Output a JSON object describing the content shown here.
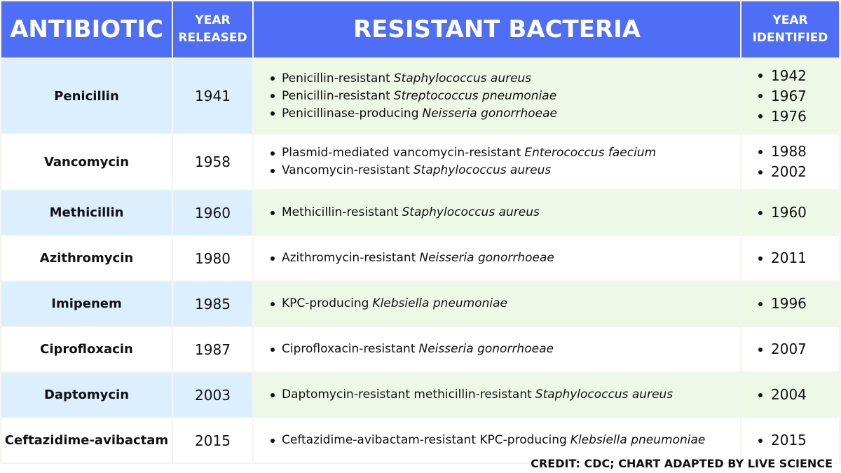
{
  "header": {
    "antibiotic": "ANTIBIOTIC",
    "year_released": "YEAR RELEASED",
    "resistant_bacteria": "RESISTANT BACTERIA",
    "year_identified": "YEAR IDENTIFIED"
  },
  "rows": [
    {
      "antibiotic": "Penicillin",
      "year_released": "1941",
      "bacteria": [
        {
          "text": "Penicillin-resistant",
          "italic": "Staphylococcus aureus"
        },
        {
          "text": "Penicillin-resistant",
          "italic": "Streptococcus pneumoniae"
        },
        {
          "text": "Penicillinase-producing",
          "italic": "Neisseria gonorrhoeae"
        }
      ],
      "years_identified": [
        "1942",
        "1967",
        "1976"
      ]
    },
    {
      "antibiotic": "Vancomycin",
      "year_released": "1958",
      "bacteria": [
        {
          "text": "Plasmid-mediated vancomycin-resistant",
          "italic": "Enterococcus faecium"
        },
        {
          "text": "Vancomycin-resistant",
          "italic": "Staphylococcus aureus"
        }
      ],
      "years_identified": [
        "1988",
        "2002"
      ]
    },
    {
      "antibiotic": "Methicillin",
      "year_released": "1960",
      "bacteria": [
        {
          "text": "Methicillin-resistant",
          "italic": "Staphylococcus aureus"
        }
      ],
      "years_identified": [
        "1960"
      ]
    },
    {
      "antibiotic": "Azithromycin",
      "year_released": "1980",
      "bacteria": [
        {
          "text": "Azithromycin-resistant",
          "italic": "Neisseria gonorrhoeae"
        }
      ],
      "years_identified": [
        "2011"
      ]
    },
    {
      "antibiotic": "Imipenem",
      "year_released": "1985",
      "bacteria": [
        {
          "text": "KPC-producing",
          "italic": "Klebsiella pneumoniae"
        }
      ],
      "years_identified": [
        "1996"
      ]
    },
    {
      "antibiotic": "Ciprofloxacin",
      "year_released": "1987",
      "bacteria": [
        {
          "text": "Ciprofloxacin-resistant",
          "italic": "Neisseria gonorrhoeae"
        }
      ],
      "years_identified": [
        "2007"
      ]
    },
    {
      "antibiotic": "Daptomycin",
      "year_released": "2003",
      "bacteria": [
        {
          "text": "Daptomycin-resistant methicillin-resistant",
          "italic": "Staphylococcus aureus"
        }
      ],
      "years_identified": [
        "2004"
      ]
    },
    {
      "antibiotic": "Ceftazidime-avibactam",
      "year_released": "2015",
      "bacteria": [
        {
          "text": "Ceftazidime-avibactam-resistant KPC-producing",
          "italic": "Klebsiella pneumoniae"
        }
      ],
      "years_identified": [
        "2015"
      ]
    }
  ],
  "credit": "CREDIT: CDC; CHART ADAPTED BY LIVE SCIENCE"
}
